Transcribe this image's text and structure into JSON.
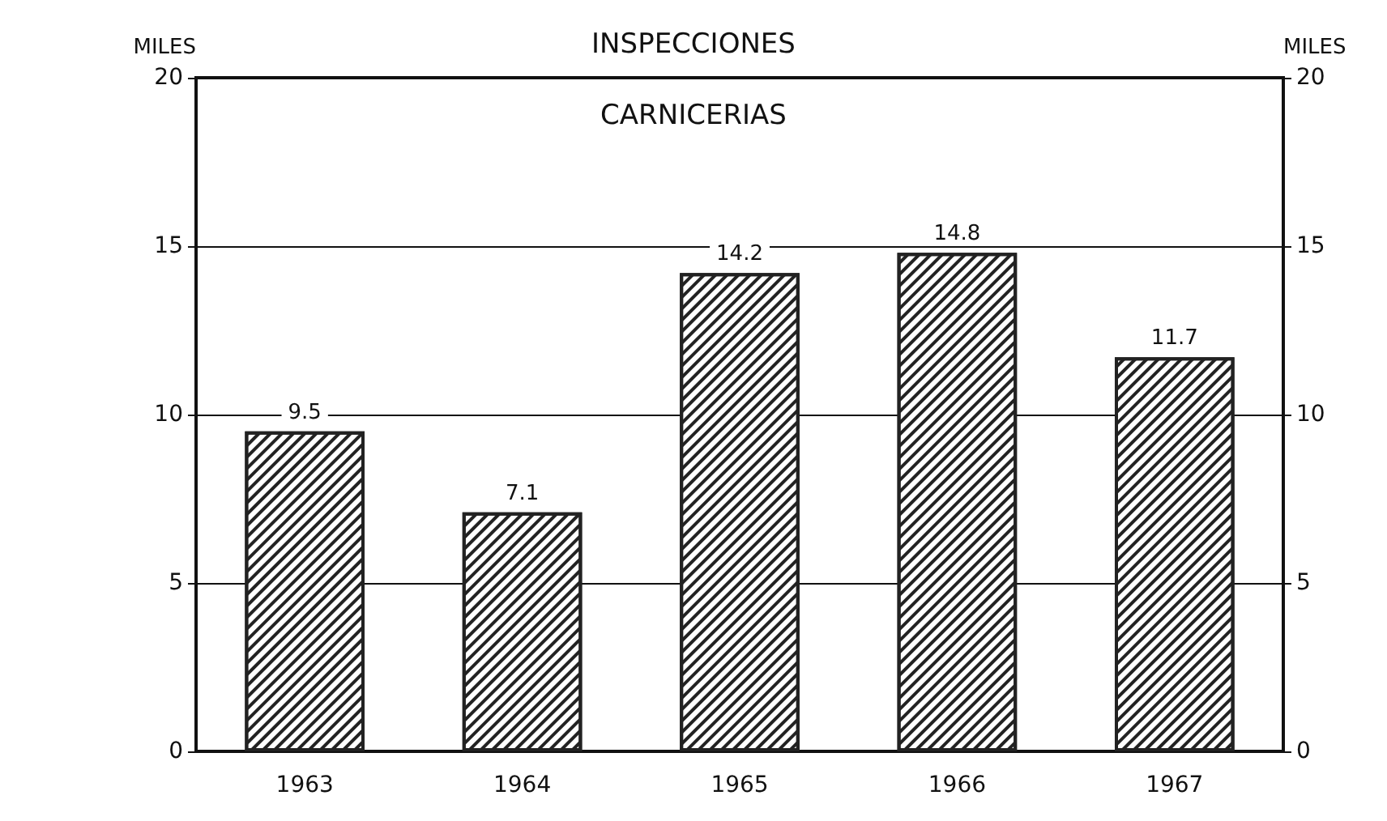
{
  "chart_data": {
    "type": "bar",
    "title": "INSPECCIONES",
    "subtitle": "CARNICERIAS",
    "ylabel": "MILES",
    "y2label": "MILES",
    "categories": [
      "1963",
      "1964",
      "1965",
      "1966",
      "1967"
    ],
    "values": [
      9.5,
      7.1,
      14.2,
      14.8,
      11.7
    ],
    "color": "#222222",
    "ylim": [
      0,
      20
    ],
    "yticks": [
      0,
      5,
      10,
      15,
      20
    ],
    "y2lim": [
      0,
      20
    ],
    "y2ticks": [
      0,
      5,
      10,
      15,
      20
    ],
    "grid": "y",
    "data_labels": true
  }
}
